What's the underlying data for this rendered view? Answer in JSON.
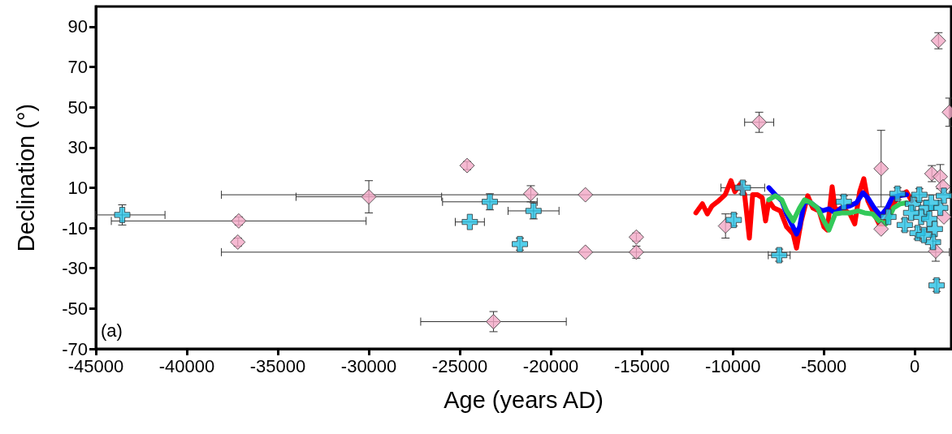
{
  "chart_data": {
    "type": "scatter",
    "xlabel": "Age (years AD)",
    "ylabel": "Declination (°)",
    "xlim": [
      -45000,
      2000
    ],
    "xticks": [
      -45000,
      -40000,
      -35000,
      -30000,
      -25000,
      -20000,
      -15000,
      -10000,
      -5000,
      0
    ],
    "ylim": [
      -70,
      100
    ],
    "yticks": [
      -70,
      -50,
      -30,
      -10,
      10,
      30,
      50,
      70,
      90
    ],
    "grid": false,
    "annotations": [
      "(a)"
    ],
    "series": [
      {
        "marker": "diamond",
        "color": "#f2a7c6",
        "x": [
          -30000,
          -37150,
          -37200,
          -24600,
          -21100,
          -18100,
          -18100,
          -15300,
          -15300,
          -23150,
          -8550,
          -10400,
          -1850,
          -1850,
          1300,
          1900,
          940,
          1150,
          1400,
          1550,
          1600
        ],
        "values": [
          5.5,
          -6.5,
          -17,
          21,
          7,
          6.5,
          -22,
          -14.5,
          -22,
          -56.5,
          42.5,
          -9,
          19.5,
          -10.5,
          83,
          47.5,
          17,
          -21.5,
          15.5,
          10.5,
          -4.5
        ],
        "errors": [
          8,
          2,
          2,
          2,
          4,
          null,
          null,
          2,
          3,
          5,
          5,
          6,
          19,
          null,
          4,
          7,
          4,
          5,
          6,
          null,
          null
        ],
        "xerrors": [
          4000,
          7000,
          null,
          null,
          null,
          20000,
          20000,
          null,
          null,
          4000,
          800,
          null,
          null,
          null,
          null,
          null,
          null,
          null,
          null,
          null,
          null
        ]
      },
      {
        "marker": "cross",
        "color": "#29c3e6",
        "x": [
          -43550,
          -24450,
          -23350,
          -20950,
          -21700,
          -9450,
          -9950,
          -7450,
          -3900,
          -1450,
          -950,
          1200,
          -550,
          -100,
          250,
          650,
          350,
          150,
          800,
          1100,
          1000,
          1400,
          1600,
          -200,
          500,
          900
        ],
        "values": [
          -3.5,
          -7,
          3,
          -1.5,
          -18,
          10,
          -6,
          -23.5,
          3,
          -4.5,
          7,
          -38.5,
          -8.5,
          2,
          6.5,
          0,
          -4.5,
          -12.5,
          -5.5,
          -10.5,
          -17,
          0,
          6,
          -2.5,
          -13.5,
          2.5
        ],
        "errors": [
          5,
          null,
          4,
          4,
          3,
          3,
          3,
          3,
          3,
          null,
          3,
          3,
          3,
          null,
          3,
          null,
          null,
          3,
          null,
          null,
          3,
          null,
          null,
          null,
          3,
          null
        ],
        "xerrors": [
          [
            -45000,
            -41200
          ],
          800,
          2600,
          1400,
          null,
          1200,
          null,
          600,
          null,
          null,
          null,
          null,
          null,
          null,
          null,
          null,
          null,
          null,
          null,
          null,
          null,
          null,
          null,
          null,
          null,
          null
        ]
      },
      {
        "type": "line",
        "color": "#ff0000",
        "x": [
          -12030,
          -11670,
          -11400,
          -11140,
          -10780,
          -10420,
          -10100,
          -9890,
          -9620,
          -9350,
          -9090,
          -8910,
          -8640,
          -8380,
          -8200,
          -8020,
          -7750,
          -7390,
          -7040,
          -6680,
          -6500,
          -6240,
          -5880,
          -5610,
          -5260,
          -4990,
          -4810,
          -4540,
          -4370,
          -4010,
          -3560,
          -3300,
          -3030,
          -2800,
          -2580,
          -2230,
          -1960,
          -1690,
          -1340,
          -980,
          -450,
          -180
        ],
        "values": [
          -2.5,
          2,
          -3,
          1,
          3.5,
          6.5,
          13.5,
          8,
          11.5,
          6.5,
          -15,
          6.5,
          6.5,
          5,
          -6.5,
          3.5,
          0,
          -1.5,
          -9.5,
          -13,
          -20,
          -6.5,
          6,
          0,
          -1.5,
          -9.5,
          -11,
          10.5,
          -1.5,
          0,
          -3,
          -8,
          8,
          14.5,
          3.5,
          -3,
          -8,
          -8,
          -1.5,
          5,
          8,
          3.5
        ]
      },
      {
        "type": "line",
        "color": "#0000ff",
        "x": [
          -8020,
          -7660,
          -7310,
          -7040,
          -6770,
          -6500,
          -6330,
          -6060,
          -5700,
          -5350,
          -5080,
          -4720,
          -4370,
          -4010,
          -3560,
          -3210,
          -2850,
          -2580,
          -2230,
          -1870,
          -1520,
          -1250,
          -890,
          -450
        ],
        "values": [
          10,
          6.5,
          3.5,
          -3,
          -8,
          -13,
          -9.5,
          3.5,
          2.5,
          0,
          -1.5,
          -0.5,
          -2.5,
          0,
          1,
          2.5,
          7.5,
          5,
          0,
          -4,
          0,
          5,
          6,
          6.5
        ]
      },
      {
        "type": "line",
        "color": "#33c95a",
        "x": [
          -8020,
          -7660,
          -7310,
          -7040,
          -6680,
          -6330,
          -6060,
          -5700,
          -5350,
          -4990,
          -4720,
          -4370,
          -4010,
          -3560,
          -3120,
          -2760,
          -2320,
          -1960,
          -1600,
          -1160,
          -800,
          -450
        ],
        "values": [
          4,
          6,
          4,
          -1.5,
          -6.5,
          0,
          4,
          2.5,
          0,
          -6.5,
          -11,
          -3,
          -2.5,
          -2.5,
          -1.5,
          -2.5,
          -3,
          -6.5,
          -8,
          0,
          2,
          2.5
        ]
      }
    ]
  }
}
